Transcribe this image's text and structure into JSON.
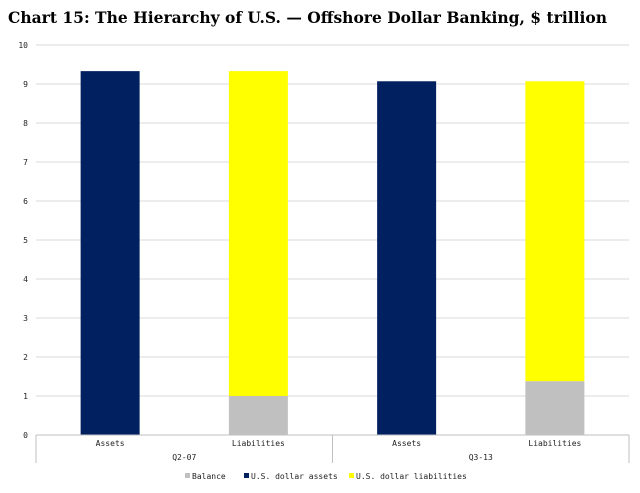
{
  "chart_data": {
    "type": "bar",
    "stacked": true,
    "title": "Chart 15: The Hierarchy of U.S. — Offshore Dollar Banking, $ trillion",
    "categories": [
      "Assets",
      "Liabilities",
      "Assets",
      "Liabilities"
    ],
    "groups": [
      {
        "label": "Q2-07",
        "categories": [
          "Assets",
          "Liabilities"
        ]
      },
      {
        "label": "Q3-13",
        "categories": [
          "Assets",
          "Liabilities"
        ]
      }
    ],
    "series": [
      {
        "name": "Balance",
        "color": "#c0c0c0",
        "values": [
          0,
          1.0,
          0,
          1.38
        ]
      },
      {
        "name": "U.S. dollar assets",
        "color": "#002060",
        "values": [
          9.33,
          0,
          9.07,
          0
        ]
      },
      {
        "name": "U.S. dollar liabilities",
        "color": "#ffff00",
        "values": [
          0,
          8.33,
          0,
          7.69
        ]
      }
    ],
    "ylim": [
      0,
      10
    ],
    "yticks": [
      "0",
      "1",
      "2",
      "3",
      "4",
      "5",
      "6",
      "7",
      "8",
      "9",
      "10"
    ],
    "grid": true,
    "legend": "bottom"
  }
}
